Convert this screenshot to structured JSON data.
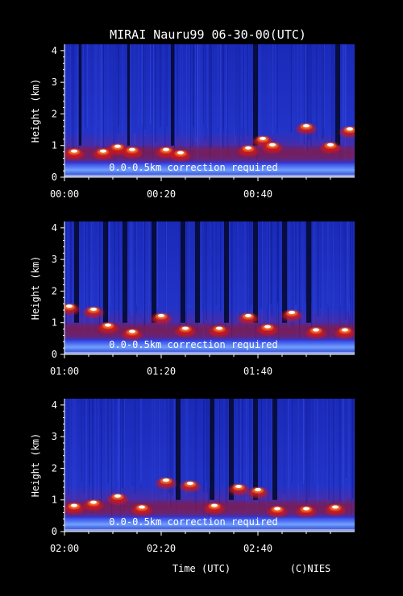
{
  "title": "MIRAI Nauru99 06-30-00(UTC)",
  "ylabel": "Height (km)",
  "xlabel": "Time (UTC)",
  "credit": "(C)NIES",
  "colors": {
    "background": "#000000",
    "text": "#ffffff",
    "low_signal": "#1a2acc",
    "mid_signal": "#c01010",
    "high_signal": "#ffffff"
  },
  "chart_data": [
    {
      "type": "heatmap",
      "x_ticks": [
        "00:00",
        "00:20",
        "00:40"
      ],
      "y_ticks": [
        "0",
        "1",
        "2",
        "3",
        "4"
      ],
      "ylim": [
        0,
        4.2
      ],
      "xlim_minutes": [
        0,
        60
      ],
      "annotation": "0.0-0.5km correction required",
      "cloud_base_km": [
        {
          "t": 2,
          "h": 0.8
        },
        {
          "t": 8,
          "h": 0.8
        },
        {
          "t": 11,
          "h": 0.95
        },
        {
          "t": 14,
          "h": 0.85
        },
        {
          "t": 21,
          "h": 0.85
        },
        {
          "t": 24,
          "h": 0.75
        },
        {
          "t": 38,
          "h": 0.9
        },
        {
          "t": 41,
          "h": 1.2
        },
        {
          "t": 43,
          "h": 1.0
        },
        {
          "t": 50,
          "h": 1.6
        },
        {
          "t": 55,
          "h": 1.0
        },
        {
          "t": 59,
          "h": 1.5
        }
      ],
      "no_signal_minutes": [
        [
          3,
          3.5
        ],
        [
          13,
          13.5
        ],
        [
          22,
          22.7
        ],
        [
          39,
          40
        ],
        [
          56,
          57
        ]
      ]
    },
    {
      "type": "heatmap",
      "x_ticks": [
        "01:00",
        "01:20",
        "01:40"
      ],
      "y_ticks": [
        "0",
        "1",
        "2",
        "3",
        "4"
      ],
      "ylim": [
        0,
        4.2
      ],
      "xlim_minutes": [
        60,
        120
      ],
      "annotation": "0.0-0.5km correction required",
      "cloud_base_km": [
        {
          "t": 61,
          "h": 1.5
        },
        {
          "t": 66,
          "h": 1.4
        },
        {
          "t": 69,
          "h": 0.9
        },
        {
          "t": 74,
          "h": 0.7
        },
        {
          "t": 80,
          "h": 1.2
        },
        {
          "t": 85,
          "h": 0.8
        },
        {
          "t": 92,
          "h": 0.8
        },
        {
          "t": 98,
          "h": 1.2
        },
        {
          "t": 102,
          "h": 0.85
        },
        {
          "t": 107,
          "h": 1.3
        },
        {
          "t": 112,
          "h": 0.75
        },
        {
          "t": 118,
          "h": 0.75
        }
      ],
      "no_signal_minutes": [
        [
          62,
          63
        ],
        [
          68,
          69
        ],
        [
          72,
          73
        ],
        [
          78,
          79
        ],
        [
          84,
          85
        ],
        [
          87,
          88
        ],
        [
          93,
          94
        ],
        [
          99,
          100
        ],
        [
          105,
          106
        ],
        [
          110,
          111
        ]
      ]
    },
    {
      "type": "heatmap",
      "x_ticks": [
        "02:00",
        "02:20",
        "02:40"
      ],
      "y_ticks": [
        "0",
        "1",
        "2",
        "3",
        "4"
      ],
      "ylim": [
        0,
        4.2
      ],
      "xlim_minutes": [
        120,
        180
      ],
      "annotation": "0.0-0.5km correction required",
      "cloud_base_km": [
        {
          "t": 122,
          "h": 0.8
        },
        {
          "t": 126,
          "h": 0.9
        },
        {
          "t": 131,
          "h": 1.1
        },
        {
          "t": 136,
          "h": 0.75
        },
        {
          "t": 141,
          "h": 1.6
        },
        {
          "t": 146,
          "h": 1.5
        },
        {
          "t": 151,
          "h": 0.8
        },
        {
          "t": 156,
          "h": 1.4
        },
        {
          "t": 160,
          "h": 1.3
        },
        {
          "t": 164,
          "h": 0.7
        },
        {
          "t": 170,
          "h": 0.7
        },
        {
          "t": 176,
          "h": 0.75
        }
      ],
      "no_signal_minutes": [
        [
          143,
          144
        ],
        [
          150,
          151
        ],
        [
          154,
          155
        ],
        [
          159,
          160
        ],
        [
          163,
          164
        ]
      ]
    }
  ]
}
